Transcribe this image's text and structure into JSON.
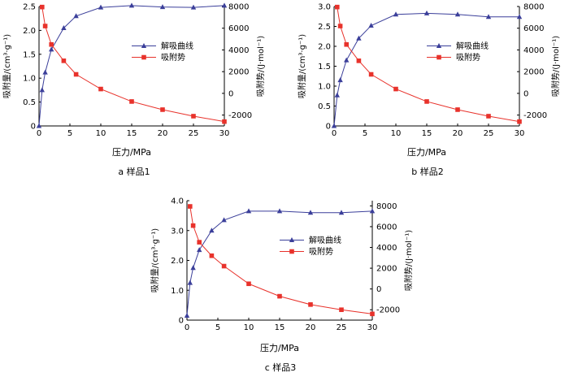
{
  "chart_data": [
    {
      "type": "line",
      "caption": "a  样品1",
      "xlabel": "压力/MPa",
      "ylabel_left": "吸附量/(cm³·g⁻¹)",
      "ylabel_right": "吸附势/(J·mol⁻¹)",
      "xlim": [
        0,
        30
      ],
      "x_ticks": [
        0,
        5,
        10,
        15,
        20,
        25,
        30
      ],
      "ylim_left": [
        0,
        2.5
      ],
      "y_ticks_left": [
        0,
        0.5,
        1.0,
        1.5,
        2.0,
        2.5
      ],
      "y_tick_labels_left": [
        "0",
        "0.5",
        "1.0",
        "1.5",
        "2.0",
        "2.5"
      ],
      "ylim_right": [
        -3000,
        8000
      ],
      "y_ticks_right": [
        -2000,
        0,
        2000,
        4000,
        6000,
        8000
      ],
      "legend_position": "center-right",
      "series": [
        {
          "name": "解吸曲线",
          "axis": "left",
          "marker": "triangle",
          "color": "#3b3f9a",
          "x": [
            0,
            0.5,
            1,
            2,
            4,
            6,
            10,
            15,
            20,
            25,
            30
          ],
          "y": [
            0,
            0.75,
            1.12,
            1.6,
            2.05,
            2.3,
            2.48,
            2.52,
            2.49,
            2.48,
            2.52
          ]
        },
        {
          "name": "吸附势",
          "axis": "right",
          "marker": "square",
          "color": "#e8322b",
          "x": [
            0.5,
            1,
            2,
            4,
            6,
            10,
            15,
            20,
            25,
            30
          ],
          "y": [
            7950,
            6200,
            4500,
            3000,
            1750,
            400,
            -750,
            -1500,
            -2100,
            -2600
          ]
        }
      ]
    },
    {
      "type": "line",
      "caption": "b  样品2",
      "xlabel": "压力/MPa",
      "ylabel_left": "吸附量/(cm³·g⁻¹)",
      "ylabel_right": "吸附势/(J·mol⁻¹)",
      "xlim": [
        0,
        30
      ],
      "x_ticks": [
        0,
        5,
        10,
        15,
        20,
        25,
        30
      ],
      "ylim_left": [
        0,
        3.0
      ],
      "y_ticks_left": [
        0,
        0.5,
        1.0,
        1.5,
        2.0,
        2.5,
        3.0
      ],
      "y_tick_labels_left": [
        "0",
        "0.5",
        "1.0",
        "1.5",
        "2.0",
        "2.5",
        "3.0"
      ],
      "ylim_right": [
        -3000,
        8000
      ],
      "y_ticks_right": [
        -2000,
        0,
        2000,
        4000,
        6000,
        8000
      ],
      "legend_position": "center-right",
      "series": [
        {
          "name": "解吸曲线",
          "axis": "left",
          "marker": "triangle",
          "color": "#3b3f9a",
          "x": [
            0,
            0.5,
            1,
            2,
            4,
            6,
            10,
            15,
            20,
            25,
            30
          ],
          "y": [
            0,
            0.77,
            1.15,
            1.65,
            2.2,
            2.52,
            2.8,
            2.83,
            2.8,
            2.74,
            2.74
          ]
        },
        {
          "name": "吸附势",
          "axis": "right",
          "marker": "square",
          "color": "#e8322b",
          "x": [
            0.5,
            1,
            2,
            4,
            6,
            10,
            15,
            20,
            25,
            30
          ],
          "y": [
            7950,
            6200,
            4500,
            3000,
            1750,
            400,
            -750,
            -1500,
            -2100,
            -2600
          ]
        }
      ]
    },
    {
      "type": "line",
      "caption": "c  样品3",
      "xlabel": "压力/MPa",
      "ylabel_left": "吸附量/(cm³·g⁻¹)",
      "ylabel_right": "吸附势/(J·mol⁻¹)",
      "xlim": [
        0,
        30
      ],
      "x_ticks": [
        0,
        5,
        10,
        15,
        20,
        25,
        30
      ],
      "ylim_left": [
        0,
        4.0
      ],
      "y_ticks_left": [
        0,
        1.0,
        2.0,
        3.0,
        4.0
      ],
      "y_tick_labels_left": [
        "0",
        "1.0",
        "2.0",
        "3.0",
        "4.0"
      ],
      "ylim_right": [
        -3000,
        8500
      ],
      "y_ticks_right": [
        -2000,
        0,
        2000,
        4000,
        6000,
        8000
      ],
      "legend_position": "center-right",
      "series": [
        {
          "name": "解吸曲线",
          "axis": "left",
          "marker": "triangle",
          "color": "#3b3f9a",
          "x": [
            0,
            0.5,
            1,
            2,
            4,
            6,
            10,
            15,
            20,
            25,
            30
          ],
          "y": [
            0.15,
            1.25,
            1.75,
            2.35,
            3.0,
            3.35,
            3.65,
            3.65,
            3.6,
            3.6,
            3.65
          ]
        },
        {
          "name": "吸附势",
          "axis": "right",
          "marker": "square",
          "color": "#e8322b",
          "x": [
            0.5,
            1,
            2,
            4,
            6,
            10,
            15,
            20,
            25,
            30
          ],
          "y": [
            7950,
            6100,
            4500,
            3200,
            2200,
            500,
            -700,
            -1500,
            -2000,
            -2400
          ]
        }
      ]
    }
  ]
}
